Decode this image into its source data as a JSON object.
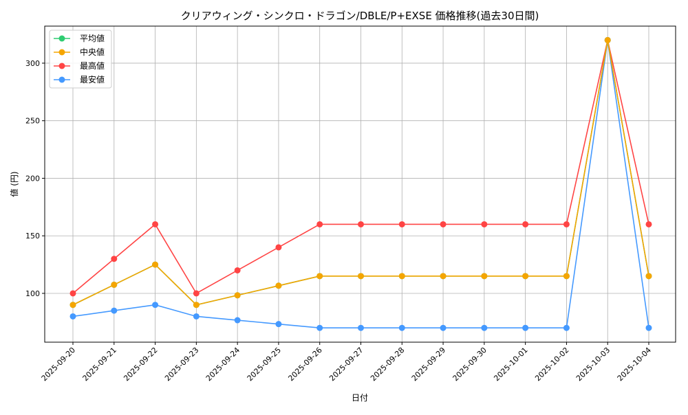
{
  "chart_data": {
    "type": "line",
    "title": "クリアウィング・シンクロ・ドラゴン/DBLE/P+EXSE 価格推移(過去30日間)",
    "xlabel": "日付",
    "ylabel": "値 (円)",
    "x": [
      "2025-09-20",
      "2025-09-21",
      "2025-09-22",
      "2025-09-23",
      "2025-09-24",
      "2025-09-25",
      "2025-09-26",
      "2025-09-27",
      "2025-09-28",
      "2025-09-29",
      "2025-09-30",
      "2025-10-01",
      "2025-10-02",
      "2025-10-03",
      "2025-10-04"
    ],
    "ylim": [
      57.6,
      332.2
    ],
    "yticks": [
      100,
      150,
      200,
      250,
      300
    ],
    "grid": true,
    "legend_position": "top-left",
    "series": [
      {
        "name": "平均値",
        "color": "#2ecc71",
        "values": [
          90,
          107.5,
          125,
          90,
          98.33,
          106.67,
          115,
          115,
          115,
          115,
          115,
          115,
          115,
          320,
          115
        ]
      },
      {
        "name": "中央値",
        "color": "#f5a500",
        "values": [
          90,
          107.5,
          125,
          90,
          98.33,
          106.67,
          115,
          115,
          115,
          115,
          115,
          115,
          115,
          320,
          115
        ]
      },
      {
        "name": "最高値",
        "color": "#ff4444",
        "values": [
          100,
          130,
          160,
          100,
          120,
          140,
          160,
          160,
          160,
          160,
          160,
          160,
          160,
          320,
          160
        ]
      },
      {
        "name": "最安値",
        "color": "#4499ff",
        "values": [
          80,
          85,
          90,
          80,
          76.67,
          73.33,
          70,
          70,
          70,
          70,
          70,
          70,
          70,
          320,
          70
        ]
      }
    ]
  }
}
